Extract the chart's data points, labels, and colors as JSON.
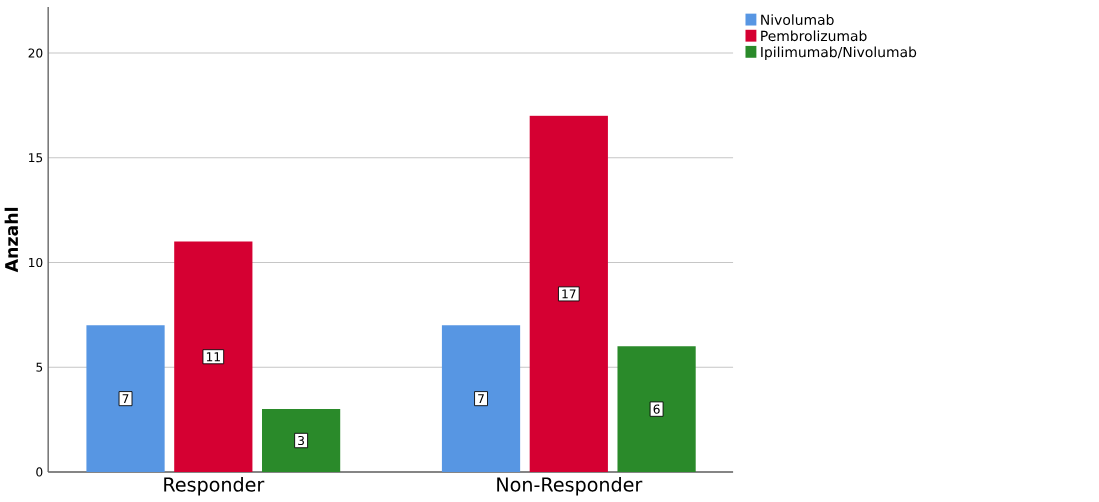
{
  "chart_data": {
    "type": "bar",
    "ylabel": "Anzahl",
    "categories": [
      "Responder",
      "Non-Responder"
    ],
    "series": [
      {
        "name": "Nivolumab",
        "color": "#5796e3",
        "values": [
          7,
          7
        ]
      },
      {
        "name": "Pembrolizumab",
        "color": "#d50032",
        "values": [
          11,
          17
        ]
      },
      {
        "name": "Ipilimumab/Nivolumab",
        "color": "#2a8a2a",
        "values": [
          3,
          6
        ]
      }
    ],
    "ylim": [
      0,
      22.2
    ],
    "yticks": [
      0,
      5,
      10,
      15,
      20
    ],
    "grid": "y",
    "legend": "top right",
    "data_labels": true
  }
}
